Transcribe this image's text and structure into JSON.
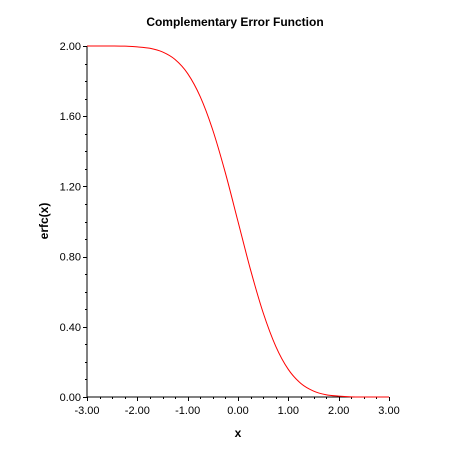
{
  "chart_data": {
    "type": "line",
    "title": "Complementary Error Function",
    "xlabel": "x",
    "ylabel": "erfc(x)",
    "xlim": [
      -3.0,
      3.0
    ],
    "ylim": [
      0.0,
      2.0
    ],
    "x_ticks": [
      -3.0,
      -2.0,
      -1.0,
      0.0,
      1.0,
      2.0,
      3.0
    ],
    "x_tick_labels": [
      "-3.00",
      "-2.00",
      "-1.00",
      "0.00",
      "1.00",
      "2.00",
      "3.00"
    ],
    "y_ticks": [
      0.0,
      0.4,
      0.8,
      1.2,
      1.6,
      2.0
    ],
    "y_tick_labels": [
      "0.00",
      "0.40",
      "0.80",
      "1.20",
      "1.60",
      "2.00"
    ],
    "grid": false,
    "legend": "none",
    "series": [
      {
        "color": "#ff0000",
        "x": [
          -3.0,
          -2.75,
          -2.5,
          -2.25,
          -2.0,
          -1.75,
          -1.5,
          -1.25,
          -1.0,
          -0.75,
          -0.5,
          -0.25,
          0.0,
          0.25,
          0.5,
          0.75,
          1.0,
          1.25,
          1.5,
          1.75,
          2.0,
          2.25,
          2.5,
          2.75,
          3.0
        ],
        "y": [
          2.0,
          2.0,
          2.0,
          1.999,
          1.995,
          1.987,
          1.966,
          1.923,
          1.843,
          1.711,
          1.52,
          1.276,
          1.0,
          0.724,
          0.48,
          0.289,
          0.157,
          0.077,
          0.034,
          0.013,
          0.005,
          0.001,
          0.0,
          0.0,
          0.0
        ]
      }
    ]
  }
}
